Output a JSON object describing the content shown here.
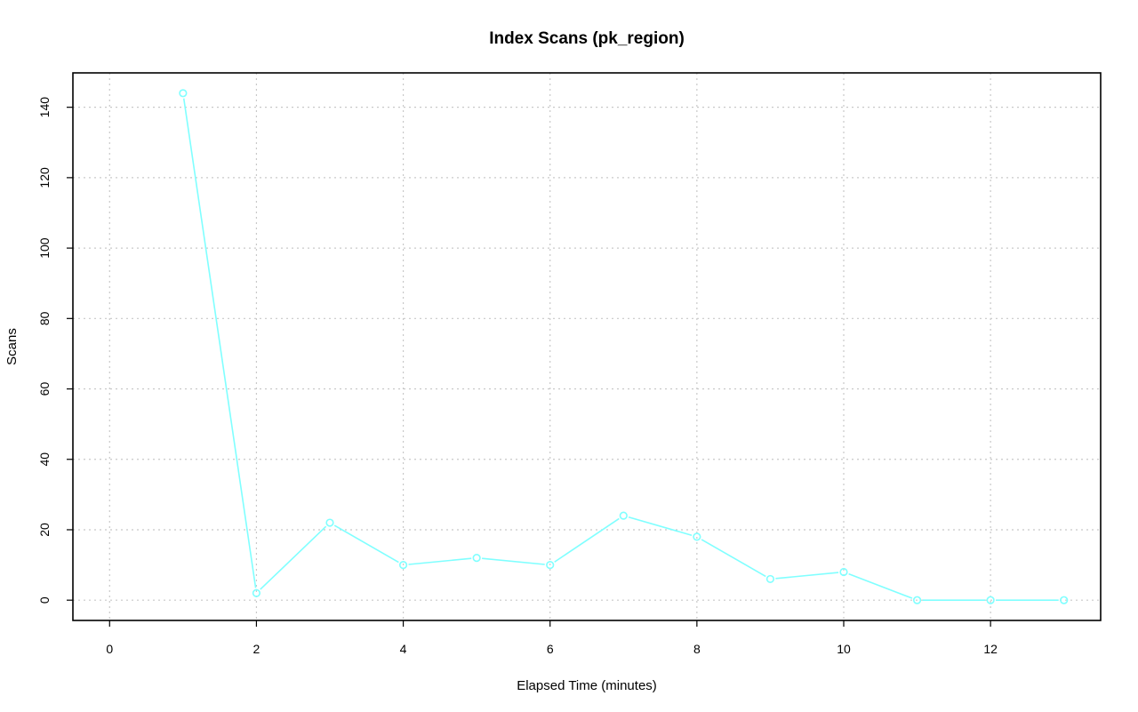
{
  "chart_data": {
    "type": "line",
    "title": "Index Scans (pk_region)",
    "xlabel": "Elapsed Time (minutes)",
    "ylabel": "Scans",
    "xlim": [
      -0.5,
      13.5
    ],
    "ylim": [
      -5.76,
      149.76
    ],
    "x_ticks": [
      0,
      2,
      4,
      6,
      8,
      10,
      12
    ],
    "y_ticks": [
      0,
      20,
      40,
      60,
      80,
      100,
      120,
      140
    ],
    "grid": true,
    "series": [
      {
        "color": "#80ffff",
        "marker": "open-circle",
        "x": [
          1,
          2,
          3,
          4,
          5,
          6,
          7,
          8,
          9,
          10,
          11,
          12,
          13
        ],
        "y": [
          144,
          2,
          22,
          10,
          12,
          10,
          24,
          18,
          6,
          8,
          0,
          0,
          0
        ]
      }
    ]
  }
}
